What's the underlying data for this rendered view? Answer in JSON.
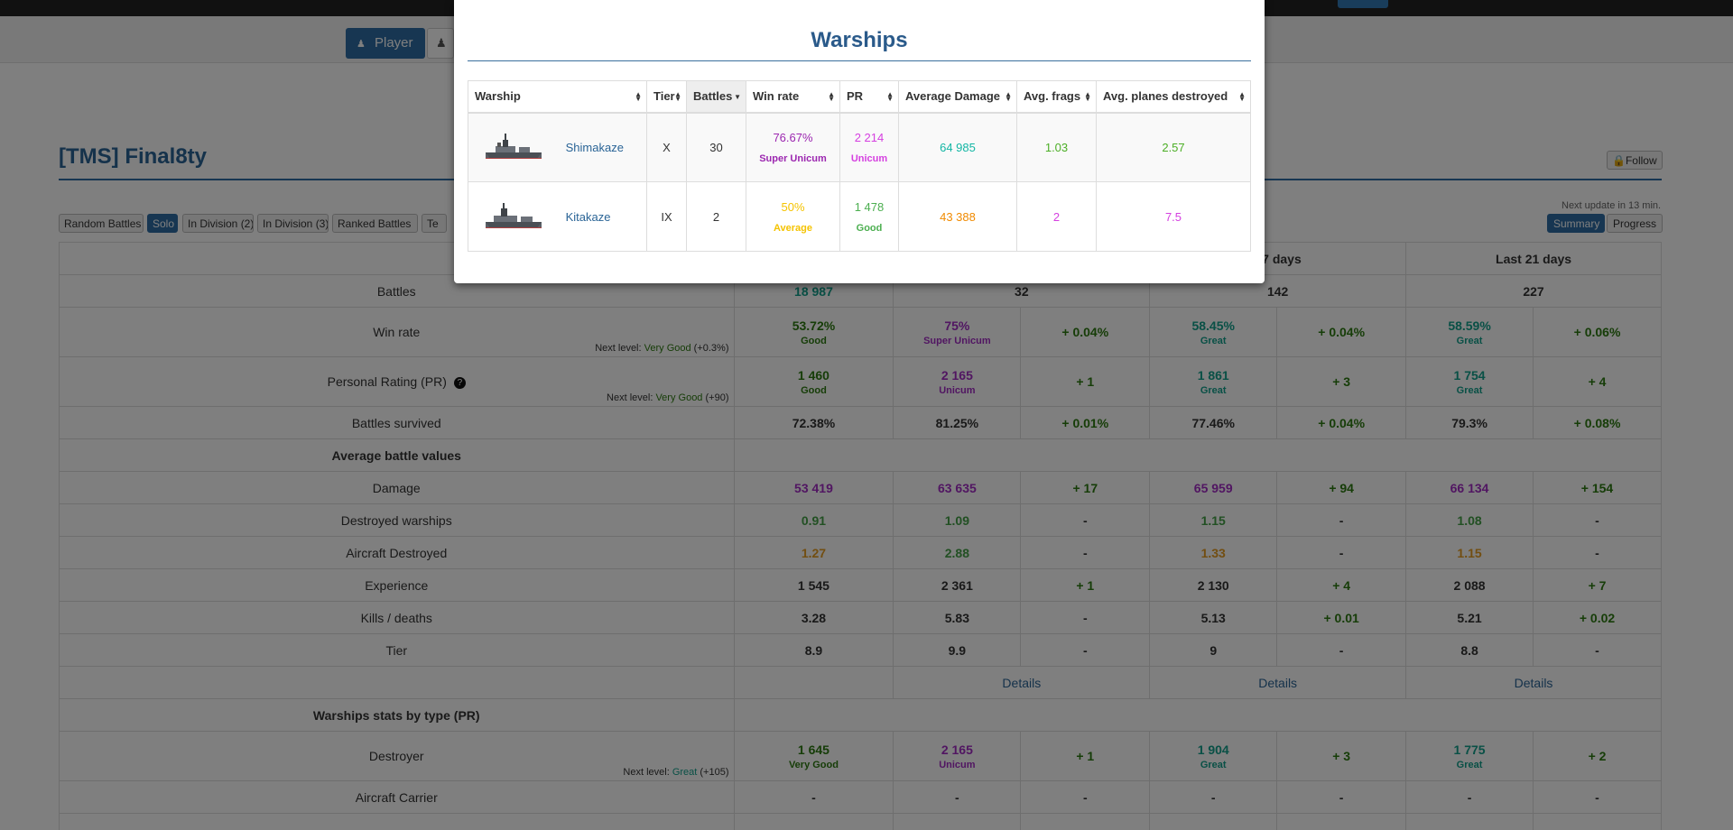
{
  "nav": {
    "player_label": "Player"
  },
  "player": {
    "title": "[TMS] Final8ty",
    "follow_label": "Follow"
  },
  "filters": [
    "Random Battles",
    "Solo",
    "In Division (2)",
    "In Division (3)",
    "Ranked Battles",
    "Te"
  ],
  "next_update": "Next update in 13 min.",
  "views": {
    "summary": "Summary",
    "progress": "Progress"
  },
  "stats": {
    "col_headers": [
      "",
      "",
      "t 7 days",
      "Last 21 days"
    ],
    "battles": {
      "label": "Battles",
      "overall": "18 987",
      "last1": "32",
      "last7": "142",
      "last21": "227"
    },
    "winrate": {
      "label": "Win rate",
      "overall": "53.72%",
      "overall_sub": "Good",
      "last1": "75%",
      "last1_sub": "Super Unicum",
      "d1": "+ 0.04%",
      "last7": "58.45%",
      "last7_sub": "Great",
      "d7": "+ 0.04%",
      "last21": "58.59%",
      "last21_sub": "Great",
      "d21": "+ 0.06%",
      "next_prefix": "Next level:",
      "next_level": "Very Good",
      "next_delta": "(+0.3%)"
    },
    "pr": {
      "label": "Personal Rating (PR)",
      "overall": "1 460",
      "overall_sub": "Good",
      "last1": "2 165",
      "last1_sub": "Unicum",
      "d1": "+ 1",
      "last7": "1 861",
      "last7_sub": "Great",
      "d7": "+ 3",
      "last21": "1 754",
      "last21_sub": "Great",
      "d21": "+ 4",
      "next_prefix": "Next level:",
      "next_level": "Very Good",
      "next_delta": "(+90)"
    },
    "survived": {
      "label": "Battles survived",
      "overall": "72.38%",
      "last1": "81.25%",
      "d1": "+ 0.01%",
      "last7": "77.46%",
      "d7": "+ 0.04%",
      "last21": "79.3%",
      "d21": "+ 0.08%"
    },
    "avg_header": "Average battle values",
    "damage": {
      "label": "Damage",
      "overall": "53 419",
      "last1": "63 635",
      "d1": "+ 17",
      "last7": "65 959",
      "d7": "+ 94",
      "last21": "66 134",
      "d21": "+ 154"
    },
    "destroyed": {
      "label": "Destroyed warships",
      "overall": "0.91",
      "last1": "1.09",
      "d1": "-",
      "last7": "1.15",
      "d7": "-",
      "last21": "1.08",
      "d21": "-"
    },
    "aircraft": {
      "label": "Aircraft Destroyed",
      "overall": "1.27",
      "last1": "2.88",
      "d1": "-",
      "last7": "1.33",
      "d7": "-",
      "last21": "1.15",
      "d21": "-"
    },
    "experience": {
      "label": "Experience",
      "overall": "1 545",
      "last1": "2 361",
      "d1": "+ 1",
      "last7": "2 130",
      "d7": "+ 4",
      "last21": "2 088",
      "d21": "+ 7"
    },
    "kd": {
      "label": "Kills / deaths",
      "overall": "3.28",
      "last1": "5.83",
      "d1": "-",
      "last7": "5.13",
      "d7": "+ 0.01",
      "last21": "5.21",
      "d21": "+ 0.02"
    },
    "tier": {
      "label": "Tier",
      "overall": "8.9",
      "last1": "9.9",
      "d1": "-",
      "last7": "9",
      "d7": "-",
      "last21": "8.8",
      "d21": "-"
    },
    "details_label": "Details",
    "bytype_header": "Warships stats by type (PR)",
    "destroyer": {
      "label": "Destroyer",
      "overall": "1 645",
      "overall_sub": "Very Good",
      "last1": "2 165",
      "last1_sub": "Unicum",
      "d1": "+ 1",
      "last7": "1 904",
      "last7_sub": "Great",
      "d7": "+ 3",
      "last21": "1 775",
      "last21_sub": "Great",
      "d21": "+ 2",
      "next_prefix": "Next level:",
      "next_level": "Great",
      "next_delta": "(+105)"
    },
    "carrier": {
      "label": "Aircraft Carrier",
      "overall": "-",
      "last1": "-",
      "d1": "-",
      "last7": "-",
      "d7": "-",
      "last21": "-",
      "d21": "-"
    }
  },
  "modal": {
    "title": "Warships",
    "headers": [
      "Warship",
      "Tier",
      "Battles",
      "Win rate",
      "PR",
      "Average Damage",
      "Avg. frags",
      "Avg. planes destroyed"
    ],
    "rows": [
      {
        "name": "Shimakaze",
        "tier": "X",
        "battles": "30",
        "winrate": "76.67%",
        "winrate_label": "Super Unicum",
        "pr": "2 214",
        "pr_label": "Unicum",
        "damage": "64 985",
        "frags": "1.03",
        "planes": "2.57"
      },
      {
        "name": "Kitakaze",
        "tier": "IX",
        "battles": "2",
        "winrate": "50%",
        "winrate_label": "Average",
        "pr": "1 478",
        "pr_label": "Good",
        "damage": "43 388",
        "frags": "2",
        "planes": "7.5"
      }
    ]
  },
  "colors": {
    "accent": "#2e6da4",
    "super_unicum": "#9c27b0",
    "unicum": "#d540e0",
    "great": "#13a08c",
    "good": "#44a047",
    "average": "#f5c300"
  }
}
